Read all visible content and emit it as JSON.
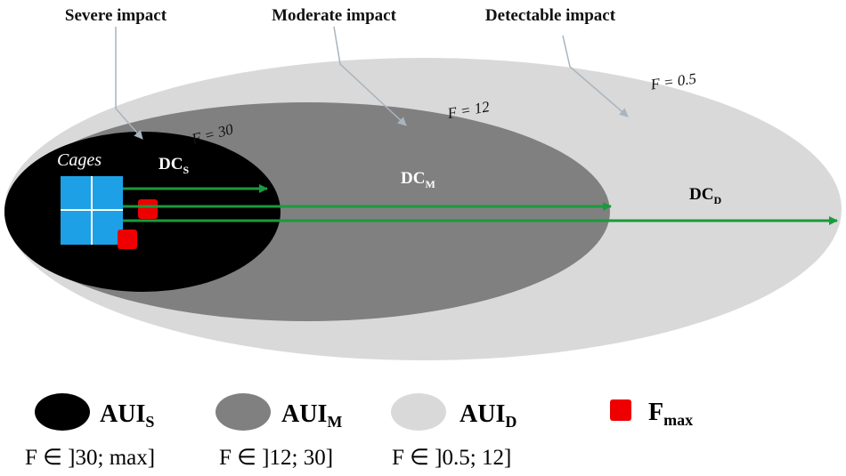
{
  "callouts": [
    "Severe impact",
    "Moderate impact",
    "Detectable impact"
  ],
  "zones": [
    {
      "label": "DC",
      "sub": "S",
      "boundary": "F = 30"
    },
    {
      "label": "DC",
      "sub": "M",
      "boundary": "F = 12"
    },
    {
      "label": "DC",
      "sub": "D",
      "boundary": "F = 0.5"
    }
  ],
  "cages_label": "Cages",
  "legend": [
    {
      "label": "AUI",
      "sub": "S",
      "range": "F ∈ ]30; max]"
    },
    {
      "label": "AUI",
      "sub": "M",
      "range": "F ∈ ]12; 30]"
    },
    {
      "label": "AUI",
      "sub": "D",
      "range": "F ∈ ]0.5; 12]"
    },
    {
      "label": "F",
      "sub": "max"
    }
  ]
}
